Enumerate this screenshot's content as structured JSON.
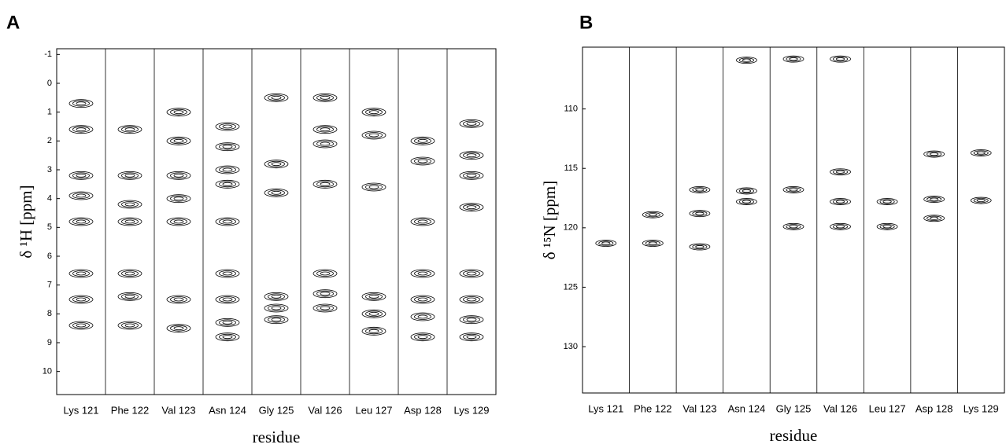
{
  "chart_data": [
    {
      "type": "strip",
      "panel": "A",
      "ylabel": "δ ¹H [ppm]",
      "xlabel": "residue",
      "categories": [
        "Lys 121",
        "Phe 122",
        "Val 123",
        "Asn 124",
        "Gly 125",
        "Val 126",
        "Leu 127",
        "Asp 128",
        "Lys 129"
      ],
      "peaks": [
        [
          0.7,
          1.6,
          3.2,
          3.9,
          4.8,
          6.6,
          7.5,
          8.4
        ],
        [
          1.6,
          3.2,
          4.2,
          4.8,
          6.6,
          7.4,
          8.4
        ],
        [
          1.0,
          2.0,
          3.2,
          4.0,
          4.8,
          7.5,
          8.5
        ],
        [
          1.5,
          2.2,
          3.0,
          3.5,
          4.8,
          6.6,
          7.5,
          8.3,
          8.8
        ],
        [
          0.5,
          2.8,
          3.8,
          7.4,
          7.8,
          8.2
        ],
        [
          0.5,
          1.6,
          2.1,
          3.5,
          6.6,
          7.3,
          7.8
        ],
        [
          1.0,
          1.8,
          3.6,
          7.4,
          8.0,
          8.6
        ],
        [
          2.0,
          2.7,
          4.8,
          6.6,
          7.5,
          8.1,
          8.8
        ],
        [
          1.4,
          2.5,
          3.2,
          4.3,
          6.6,
          7.5,
          8.2,
          8.8
        ]
      ],
      "ylim": [
        -1.2,
        10.8
      ],
      "y_inverted": true,
      "yticks": [
        -1,
        0,
        1,
        2,
        3,
        4,
        5,
        6,
        7,
        8,
        9,
        10
      ],
      "color": "#000000"
    },
    {
      "type": "strip",
      "panel": "B",
      "ylabel": "δ ¹⁵N [ppm]",
      "xlabel": "residue",
      "categories": [
        "Lys 121",
        "Phe 122",
        "Val 123",
        "Asn 124",
        "Gly 125",
        "Val 126",
        "Leu 127",
        "Asp 128",
        "Lys 129"
      ],
      "peaks": [
        [
          121.3
        ],
        [
          118.9,
          121.3
        ],
        [
          116.8,
          118.8,
          121.6
        ],
        [
          105.9,
          116.9,
          117.8
        ],
        [
          105.8,
          116.8,
          119.9
        ],
        [
          105.8,
          115.3,
          117.8,
          119.9
        ],
        [
          117.8,
          119.9
        ],
        [
          113.8,
          117.6,
          119.2
        ],
        [
          113.7,
          117.7
        ]
      ],
      "ylim": [
        104.8,
        133.9
      ],
      "y_inverted": true,
      "yticks": [
        110,
        115,
        120,
        125,
        130
      ],
      "color": "#000000"
    }
  ]
}
